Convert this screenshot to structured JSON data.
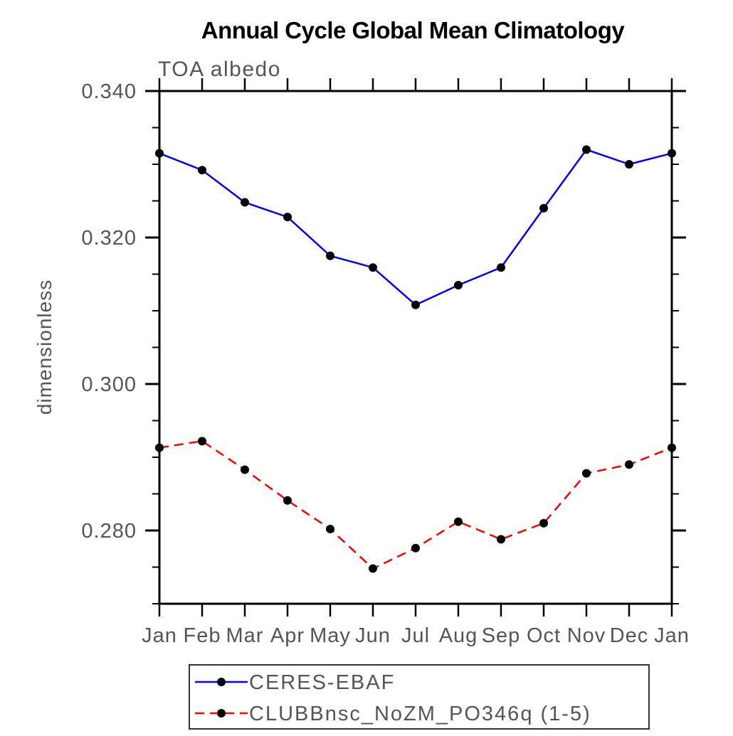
{
  "window": {
    "background": "#ffffff"
  },
  "colors": {
    "axis": "#000000",
    "tick_label": "#555555",
    "title": "#000000",
    "subtitle": "#555555",
    "legend_border": "#333333",
    "marker": "#000000",
    "series_obs": "#0000ff",
    "series_model": "#ff0000"
  },
  "chart_data": {
    "type": "line",
    "title": "Annual Cycle Global Mean Climatology",
    "subtitle": "TOA albedo",
    "xlabel": "",
    "ylabel": "dimensionless",
    "x": [
      "Jan",
      "Feb",
      "Mar",
      "Apr",
      "May",
      "Jun",
      "Jul",
      "Aug",
      "Sep",
      "Oct",
      "Nov",
      "Dec",
      "Jan"
    ],
    "ylim": [
      0.27,
      0.34
    ],
    "ytick_major": [
      0.28,
      0.3,
      0.32,
      0.34
    ],
    "ytick_labels": [
      "0.280",
      "0.300",
      "0.320",
      "0.340"
    ],
    "ytick_minor_step": 0.005,
    "grid": false,
    "legend_position": "bottom",
    "series": [
      {
        "name": "CERES-EBAF",
        "color": "#0000ff",
        "line_style": "solid",
        "marker": "circle",
        "marker_color": "#000000",
        "values": [
          0.3315,
          0.3292,
          0.3248,
          0.3228,
          0.3175,
          0.3159,
          0.3108,
          0.3135,
          0.3159,
          0.324,
          0.332,
          0.33,
          0.3315
        ]
      },
      {
        "name": "CLUBBnsc_NoZM_PO346q (1-5)",
        "color": "#ff0000",
        "line_style": "dashed",
        "marker": "circle",
        "marker_color": "#000000",
        "values": [
          0.2913,
          0.2922,
          0.2883,
          0.2841,
          0.2802,
          0.2748,
          0.2776,
          0.2812,
          0.2788,
          0.281,
          0.2878,
          0.289,
          0.2913
        ]
      }
    ]
  }
}
